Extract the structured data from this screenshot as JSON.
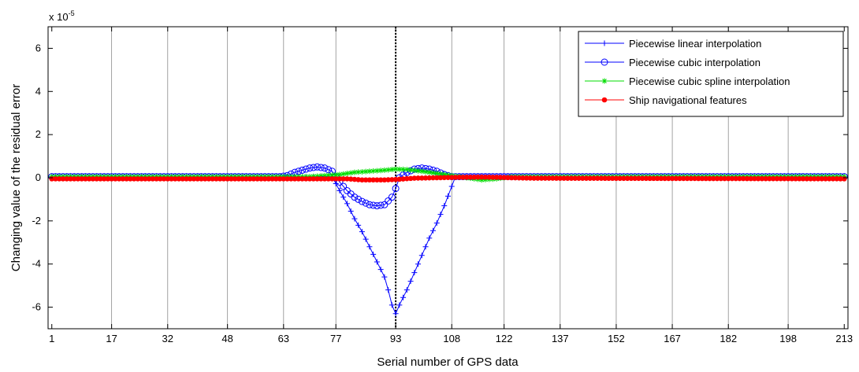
{
  "chart_data": {
    "type": "line",
    "xlabel": "Serial number of GPS data",
    "ylabel": "Changing value of the residual error",
    "y_exponent_label": {
      "base": "x 10",
      "power": "-5"
    },
    "x_ticks": [
      1,
      17,
      32,
      48,
      63,
      77,
      93,
      108,
      122,
      137,
      152,
      167,
      182,
      198,
      213
    ],
    "y_ticks": [
      -6,
      -4,
      -2,
      0,
      2,
      4,
      6
    ],
    "xlim": [
      0,
      214
    ],
    "ylim": [
      -7,
      7
    ],
    "grid": "vertical",
    "legend_position": "top-right",
    "reference_line": {
      "x": 93,
      "style": "dotted",
      "color": "#000000"
    },
    "series": [
      {
        "name": "Piecewise linear interpolation",
        "color": "#0000ff",
        "marker": "plus",
        "points": [
          [
            1,
            0.05
          ],
          [
            76,
            0.05
          ],
          [
            78,
            -0.6
          ],
          [
            80,
            -1.2
          ],
          [
            82,
            -1.9
          ],
          [
            84,
            -2.5
          ],
          [
            86,
            -3.2
          ],
          [
            88,
            -3.9
          ],
          [
            90,
            -4.6
          ],
          [
            91,
            -5.2
          ],
          [
            92,
            -5.9
          ],
          [
            93,
            -6.3
          ],
          [
            94,
            -5.9
          ],
          [
            96,
            -5.2
          ],
          [
            98,
            -4.4
          ],
          [
            100,
            -3.6
          ],
          [
            102,
            -2.8
          ],
          [
            104,
            -2.1
          ],
          [
            106,
            -1.3
          ],
          [
            108,
            -0.4
          ],
          [
            109,
            0.05
          ],
          [
            213,
            0.05
          ]
        ]
      },
      {
        "name": "Piecewise cubic interpolation",
        "color": "#0000ff",
        "marker": "circle",
        "points": [
          [
            1,
            0.05
          ],
          [
            62,
            0.05
          ],
          [
            64,
            0.1
          ],
          [
            66,
            0.25
          ],
          [
            68,
            0.35
          ],
          [
            70,
            0.45
          ],
          [
            72,
            0.5
          ],
          [
            74,
            0.45
          ],
          [
            76,
            0.3
          ],
          [
            78,
            -0.2
          ],
          [
            80,
            -0.6
          ],
          [
            82,
            -0.9
          ],
          [
            84,
            -1.1
          ],
          [
            86,
            -1.25
          ],
          [
            88,
            -1.3
          ],
          [
            90,
            -1.25
          ],
          [
            92,
            -0.9
          ],
          [
            93,
            -0.5
          ],
          [
            94,
            0.0
          ],
          [
            96,
            0.25
          ],
          [
            98,
            0.4
          ],
          [
            100,
            0.45
          ],
          [
            102,
            0.4
          ],
          [
            104,
            0.3
          ],
          [
            106,
            0.15
          ],
          [
            108,
            0.05
          ],
          [
            213,
            0.05
          ]
        ]
      },
      {
        "name": "Piecewise cubic spline interpolation",
        "color": "#00dd00",
        "marker": "asterisk",
        "points": [
          [
            1,
            0.05
          ],
          [
            70,
            0.05
          ],
          [
            74,
            0.1
          ],
          [
            78,
            0.15
          ],
          [
            82,
            0.25
          ],
          [
            86,
            0.3
          ],
          [
            90,
            0.35
          ],
          [
            93,
            0.4
          ],
          [
            96,
            0.38
          ],
          [
            100,
            0.3
          ],
          [
            104,
            0.2
          ],
          [
            108,
            0.1
          ],
          [
            112,
            0.0
          ],
          [
            116,
            -0.1
          ],
          [
            120,
            -0.05
          ],
          [
            124,
            0.05
          ],
          [
            213,
            0.05
          ]
        ]
      },
      {
        "name": "Ship navigational features",
        "color": "#ff0000",
        "marker": "dot",
        "points": [
          [
            1,
            -0.05
          ],
          [
            80,
            -0.05
          ],
          [
            84,
            -0.1
          ],
          [
            90,
            -0.1
          ],
          [
            93,
            -0.08
          ],
          [
            98,
            -0.02
          ],
          [
            104,
            0.0
          ],
          [
            110,
            0.02
          ],
          [
            116,
            0.03
          ],
          [
            120,
            0.02
          ],
          [
            124,
            0.0
          ],
          [
            130,
            -0.02
          ],
          [
            213,
            -0.05
          ]
        ]
      }
    ]
  }
}
